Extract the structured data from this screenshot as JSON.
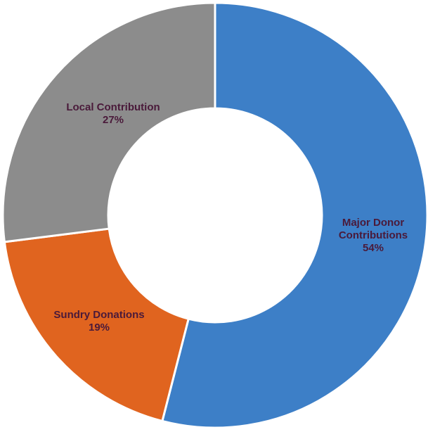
{
  "chart_data": {
    "type": "pie",
    "variant": "donut",
    "start": "12 o'clock",
    "direction": "clockwise",
    "categories": [
      "Major Donor Contributions",
      "Sundry Donations",
      "Local Contribution"
    ],
    "values": [
      54,
      19,
      27
    ],
    "series": [
      {
        "values": [
          54,
          19,
          27
        ]
      }
    ],
    "slices": [
      {
        "label_lines": [
          "Major Donor",
          "Contributions"
        ],
        "percent_text": "54%",
        "value": 54,
        "color": "#3d7fc7"
      },
      {
        "label_lines": [
          "Sundry Donations"
        ],
        "percent_text": "19%",
        "value": 19,
        "color": "#e0641f"
      },
      {
        "label_lines": [
          "Local Contribution"
        ],
        "percent_text": "27%",
        "value": 27,
        "color": "#8c8c8c"
      }
    ],
    "title": "",
    "legend": "none",
    "label_color": "#4a1a3a",
    "slice_border_color": "#ffffff"
  }
}
